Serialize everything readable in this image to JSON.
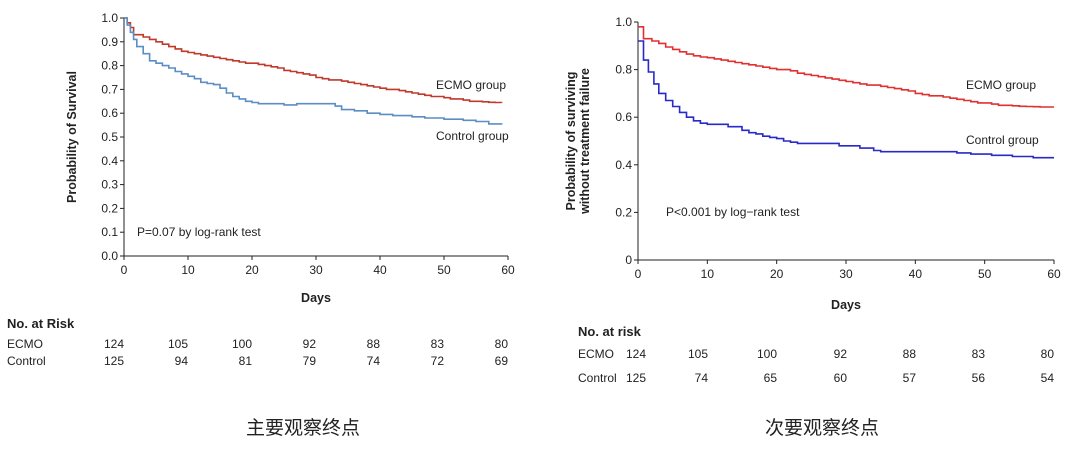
{
  "chart_data": [
    {
      "type": "line",
      "title": "主要观察终点",
      "xlabel": "Days",
      "ylabel": "Probability of Survival",
      "xlim": [
        0,
        60
      ],
      "ylim": [
        0,
        1.0
      ],
      "x_ticks": [
        "0",
        "10",
        "20",
        "30",
        "40",
        "50",
        "60"
      ],
      "y_ticks": [
        "0.0",
        "0.1",
        "0.2",
        "0.3",
        "0.4",
        "0.5",
        "0.6",
        "0.7",
        "0.8",
        "0.9",
        "1.0"
      ],
      "annotation": "P=0.07 by log-rank test",
      "series": [
        {
          "name": "ECMO group",
          "color": "#c0392b",
          "points": [
            [
              0,
              1.0
            ],
            [
              0.5,
              0.98
            ],
            [
              1,
              0.96
            ],
            [
              1.5,
              0.93
            ],
            [
              3,
              0.92
            ],
            [
              4,
              0.91
            ],
            [
              5,
              0.9
            ],
            [
              6,
              0.89
            ],
            [
              7,
              0.88
            ],
            [
              8,
              0.87
            ],
            [
              9,
              0.86
            ],
            [
              10,
              0.855
            ],
            [
              11,
              0.85
            ],
            [
              12,
              0.845
            ],
            [
              13,
              0.84
            ],
            [
              14,
              0.835
            ],
            [
              15,
              0.83
            ],
            [
              16,
              0.825
            ],
            [
              17,
              0.82
            ],
            [
              18,
              0.815
            ],
            [
              19,
              0.81
            ],
            [
              20,
              0.81
            ],
            [
              21,
              0.805
            ],
            [
              22,
              0.8
            ],
            [
              23,
              0.795
            ],
            [
              24,
              0.79
            ],
            [
              25,
              0.78
            ],
            [
              26,
              0.775
            ],
            [
              27,
              0.77
            ],
            [
              28,
              0.765
            ],
            [
              29,
              0.76
            ],
            [
              30,
              0.75
            ],
            [
              31,
              0.745
            ],
            [
              32,
              0.74
            ],
            [
              33,
              0.74
            ],
            [
              34,
              0.735
            ],
            [
              35,
              0.73
            ],
            [
              36,
              0.725
            ],
            [
              37,
              0.72
            ],
            [
              38,
              0.715
            ],
            [
              39,
              0.71
            ],
            [
              40,
              0.705
            ],
            [
              41,
              0.7
            ],
            [
              42,
              0.7
            ],
            [
              43,
              0.695
            ],
            [
              44,
              0.69
            ],
            [
              45,
              0.685
            ],
            [
              46,
              0.68
            ],
            [
              47,
              0.675
            ],
            [
              48,
              0.67
            ],
            [
              49,
              0.67
            ],
            [
              50,
              0.665
            ],
            [
              51,
              0.66
            ],
            [
              52,
              0.66
            ],
            [
              53,
              0.655
            ],
            [
              54,
              0.65
            ],
            [
              55,
              0.65
            ],
            [
              56,
              0.648
            ],
            [
              57,
              0.646
            ],
            [
              58,
              0.645
            ],
            [
              59,
              0.644
            ]
          ]
        },
        {
          "name": "Control group",
          "color": "#5b8ec4",
          "points": [
            [
              0,
              1.0
            ],
            [
              0.5,
              0.97
            ],
            [
              1,
              0.94
            ],
            [
              1.5,
              0.91
            ],
            [
              2,
              0.88
            ],
            [
              3,
              0.85
            ],
            [
              4,
              0.82
            ],
            [
              5,
              0.81
            ],
            [
              6,
              0.8
            ],
            [
              7,
              0.79
            ],
            [
              8,
              0.775
            ],
            [
              9,
              0.765
            ],
            [
              10,
              0.755
            ],
            [
              11,
              0.745
            ],
            [
              12,
              0.73
            ],
            [
              13,
              0.725
            ],
            [
              14,
              0.72
            ],
            [
              15,
              0.705
            ],
            [
              16,
              0.685
            ],
            [
              17,
              0.67
            ],
            [
              18,
              0.66
            ],
            [
              19,
              0.65
            ],
            [
              20,
              0.645
            ],
            [
              21,
              0.64
            ],
            [
              24,
              0.64
            ],
            [
              25,
              0.635
            ],
            [
              27,
              0.64
            ],
            [
              33,
              0.63
            ],
            [
              34,
              0.615
            ],
            [
              36,
              0.61
            ],
            [
              38,
              0.6
            ],
            [
              40,
              0.595
            ],
            [
              42,
              0.59
            ],
            [
              45,
              0.585
            ],
            [
              47,
              0.58
            ],
            [
              50,
              0.575
            ],
            [
              53,
              0.57
            ],
            [
              55,
              0.565
            ],
            [
              57,
              0.555
            ],
            [
              59,
              0.552
            ]
          ]
        }
      ],
      "risk_table": {
        "heading": "No. at Risk",
        "times": [
          0,
          10,
          20,
          30,
          40,
          50,
          60
        ],
        "rows": [
          {
            "label": "ECMO",
            "values": [
              "124",
              "105",
              "100",
              "92",
              "88",
              "83",
              "80"
            ]
          },
          {
            "label": "Control",
            "values": [
              "125",
              "94",
              "81",
              "79",
              "74",
              "72",
              "69"
            ]
          }
        ]
      }
    },
    {
      "type": "line",
      "title": "次要观察终点",
      "xlabel": "Days",
      "ylabel_lines": [
        "Probability of surviving",
        "without treatment failure"
      ],
      "xlim": [
        0,
        60
      ],
      "ylim": [
        0,
        1.0
      ],
      "x_ticks": [
        "0",
        "10",
        "20",
        "30",
        "40",
        "50",
        "60"
      ],
      "y_ticks": [
        "0",
        "0.2",
        "0.4",
        "0.6",
        "0.8",
        "1.0"
      ],
      "annotation": "P<0.001 by log−rank test",
      "series": [
        {
          "name": "ECMO group",
          "color": "#e03030",
          "points": [
            [
              0,
              0.98
            ],
            [
              0.8,
              0.93
            ],
            [
              2,
              0.92
            ],
            [
              3,
              0.91
            ],
            [
              4,
              0.895
            ],
            [
              5,
              0.885
            ],
            [
              6,
              0.875
            ],
            [
              7,
              0.865
            ],
            [
              8,
              0.858
            ],
            [
              9,
              0.853
            ],
            [
              10,
              0.85
            ],
            [
              11,
              0.845
            ],
            [
              12,
              0.84
            ],
            [
              13,
              0.835
            ],
            [
              14,
              0.83
            ],
            [
              15,
              0.825
            ],
            [
              16,
              0.82
            ],
            [
              17,
              0.815
            ],
            [
              18,
              0.81
            ],
            [
              19,
              0.805
            ],
            [
              20,
              0.8
            ],
            [
              21,
              0.8
            ],
            [
              22,
              0.795
            ],
            [
              23,
              0.785
            ],
            [
              24,
              0.78
            ],
            [
              25,
              0.775
            ],
            [
              26,
              0.77
            ],
            [
              27,
              0.765
            ],
            [
              28,
              0.76
            ],
            [
              29,
              0.755
            ],
            [
              30,
              0.75
            ],
            [
              31,
              0.745
            ],
            [
              32,
              0.74
            ],
            [
              33,
              0.735
            ],
            [
              34,
              0.735
            ],
            [
              35,
              0.73
            ],
            [
              36,
              0.725
            ],
            [
              37,
              0.72
            ],
            [
              38,
              0.715
            ],
            [
              39,
              0.71
            ],
            [
              40,
              0.7
            ],
            [
              41,
              0.695
            ],
            [
              42,
              0.69
            ],
            [
              43,
              0.69
            ],
            [
              44,
              0.685
            ],
            [
              45,
              0.68
            ],
            [
              46,
              0.675
            ],
            [
              47,
              0.67
            ],
            [
              48,
              0.665
            ],
            [
              49,
              0.66
            ],
            [
              50,
              0.66
            ],
            [
              51,
              0.655
            ],
            [
              52,
              0.65
            ],
            [
              53,
              0.65
            ],
            [
              54,
              0.648
            ],
            [
              55,
              0.646
            ],
            [
              56,
              0.645
            ],
            [
              57,
              0.644
            ],
            [
              58,
              0.643
            ],
            [
              59,
              0.643
            ],
            [
              60,
              0.643
            ]
          ]
        },
        {
          "name": "Control group",
          "color": "#2929c8",
          "points": [
            [
              0,
              0.92
            ],
            [
              0.8,
              0.84
            ],
            [
              1.5,
              0.79
            ],
            [
              2.3,
              0.74
            ],
            [
              3,
              0.7
            ],
            [
              4,
              0.67
            ],
            [
              5,
              0.645
            ],
            [
              6,
              0.62
            ],
            [
              7,
              0.6
            ],
            [
              8,
              0.585
            ],
            [
              9,
              0.575
            ],
            [
              10,
              0.57
            ],
            [
              12,
              0.57
            ],
            [
              13,
              0.56
            ],
            [
              15,
              0.545
            ],
            [
              16,
              0.535
            ],
            [
              17,
              0.53
            ],
            [
              18,
              0.52
            ],
            [
              19,
              0.515
            ],
            [
              20,
              0.51
            ],
            [
              21,
              0.5
            ],
            [
              22,
              0.495
            ],
            [
              23,
              0.49
            ],
            [
              28,
              0.49
            ],
            [
              29,
              0.48
            ],
            [
              32,
              0.47
            ],
            [
              34,
              0.46
            ],
            [
              35,
              0.455
            ],
            [
              44,
              0.455
            ],
            [
              46,
              0.45
            ],
            [
              47,
              0.45
            ],
            [
              48,
              0.445
            ],
            [
              50,
              0.445
            ],
            [
              51,
              0.44
            ],
            [
              53,
              0.44
            ],
            [
              54,
              0.435
            ],
            [
              56,
              0.435
            ],
            [
              57,
              0.43
            ],
            [
              60,
              0.43
            ]
          ]
        }
      ],
      "risk_table": {
        "heading": "No. at risk",
        "times": [
          0,
          10,
          20,
          30,
          40,
          50,
          60
        ],
        "rows": [
          {
            "label": "ECMO",
            "first": "124",
            "values": [
              "105",
              "100",
              "92",
              "88",
              "83",
              "80"
            ]
          },
          {
            "label": "Control",
            "first": "125",
            "values": [
              "74",
              "65",
              "60",
              "57",
              "56",
              "54"
            ]
          }
        ]
      }
    }
  ]
}
